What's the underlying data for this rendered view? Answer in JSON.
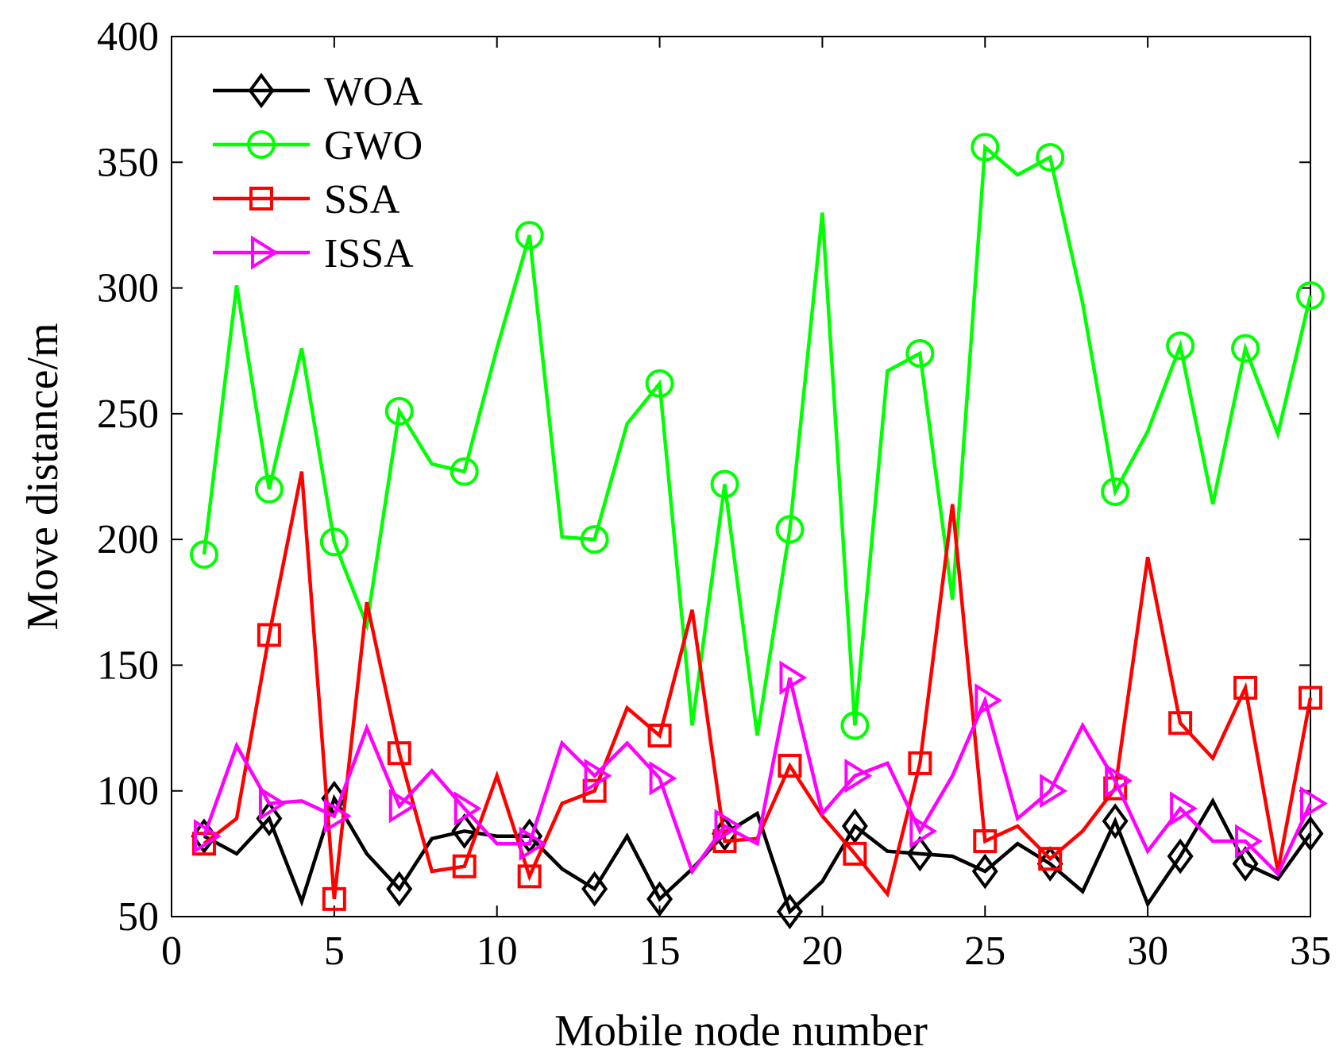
{
  "chart_data": {
    "type": "line",
    "title": "",
    "xlabel": "Mobile node number",
    "ylabel": "Move distance/m",
    "xlim": [
      0,
      35
    ],
    "ylim": [
      50,
      400
    ],
    "xticks": [
      0,
      5,
      10,
      15,
      20,
      25,
      30,
      35
    ],
    "yticks": [
      50,
      100,
      150,
      200,
      250,
      300,
      350,
      400
    ],
    "legend_position": "top-left",
    "x": [
      1,
      2,
      3,
      4,
      5,
      6,
      7,
      8,
      9,
      10,
      11,
      12,
      13,
      14,
      15,
      16,
      17,
      18,
      19,
      20,
      21,
      22,
      23,
      24,
      25,
      26,
      27,
      28,
      29,
      30,
      31,
      32,
      33,
      34,
      35
    ],
    "series": [
      {
        "name": "WOA",
        "color": "#000000",
        "marker": "diamond",
        "values": [
          82,
          75,
          89,
          56,
          97,
          75,
          61,
          81,
          84,
          82,
          82,
          69,
          61,
          82,
          57,
          69,
          83,
          91,
          52,
          64,
          86,
          76,
          75,
          74,
          68,
          79,
          71,
          60,
          88,
          55,
          74,
          96,
          71,
          65,
          83
        ]
      },
      {
        "name": "GWO",
        "color": "#00ff00",
        "marker": "circle",
        "values": [
          194,
          301,
          220,
          276,
          199,
          166,
          251,
          230,
          227,
          276,
          321,
          201,
          200,
          246,
          262,
          126,
          222,
          122,
          204,
          330,
          126,
          267,
          274,
          176,
          356,
          345,
          352,
          294,
          219,
          243,
          277,
          214,
          276,
          242,
          297
        ]
      },
      {
        "name": "SSA",
        "color": "#ff0000",
        "marker": "square",
        "values": [
          79,
          89,
          162,
          227,
          57,
          175,
          115,
          68,
          70,
          106,
          66,
          95,
          100,
          133,
          122,
          172,
          80,
          81,
          110,
          90,
          75,
          59,
          111,
          214,
          80,
          86,
          73,
          84,
          101,
          193,
          127,
          113,
          141,
          68,
          137
        ]
      },
      {
        "name": "ISSA",
        "color": "#ff00ff",
        "marker": "triangle-right",
        "values": [
          82,
          118,
          95,
          96,
          90,
          125,
          94,
          108,
          93,
          79,
          79,
          119,
          106,
          119,
          105,
          68,
          86,
          79,
          145,
          91,
          106,
          111,
          84,
          106,
          136,
          89,
          100,
          126,
          104,
          76,
          93,
          80,
          80,
          67,
          95
        ]
      }
    ]
  }
}
